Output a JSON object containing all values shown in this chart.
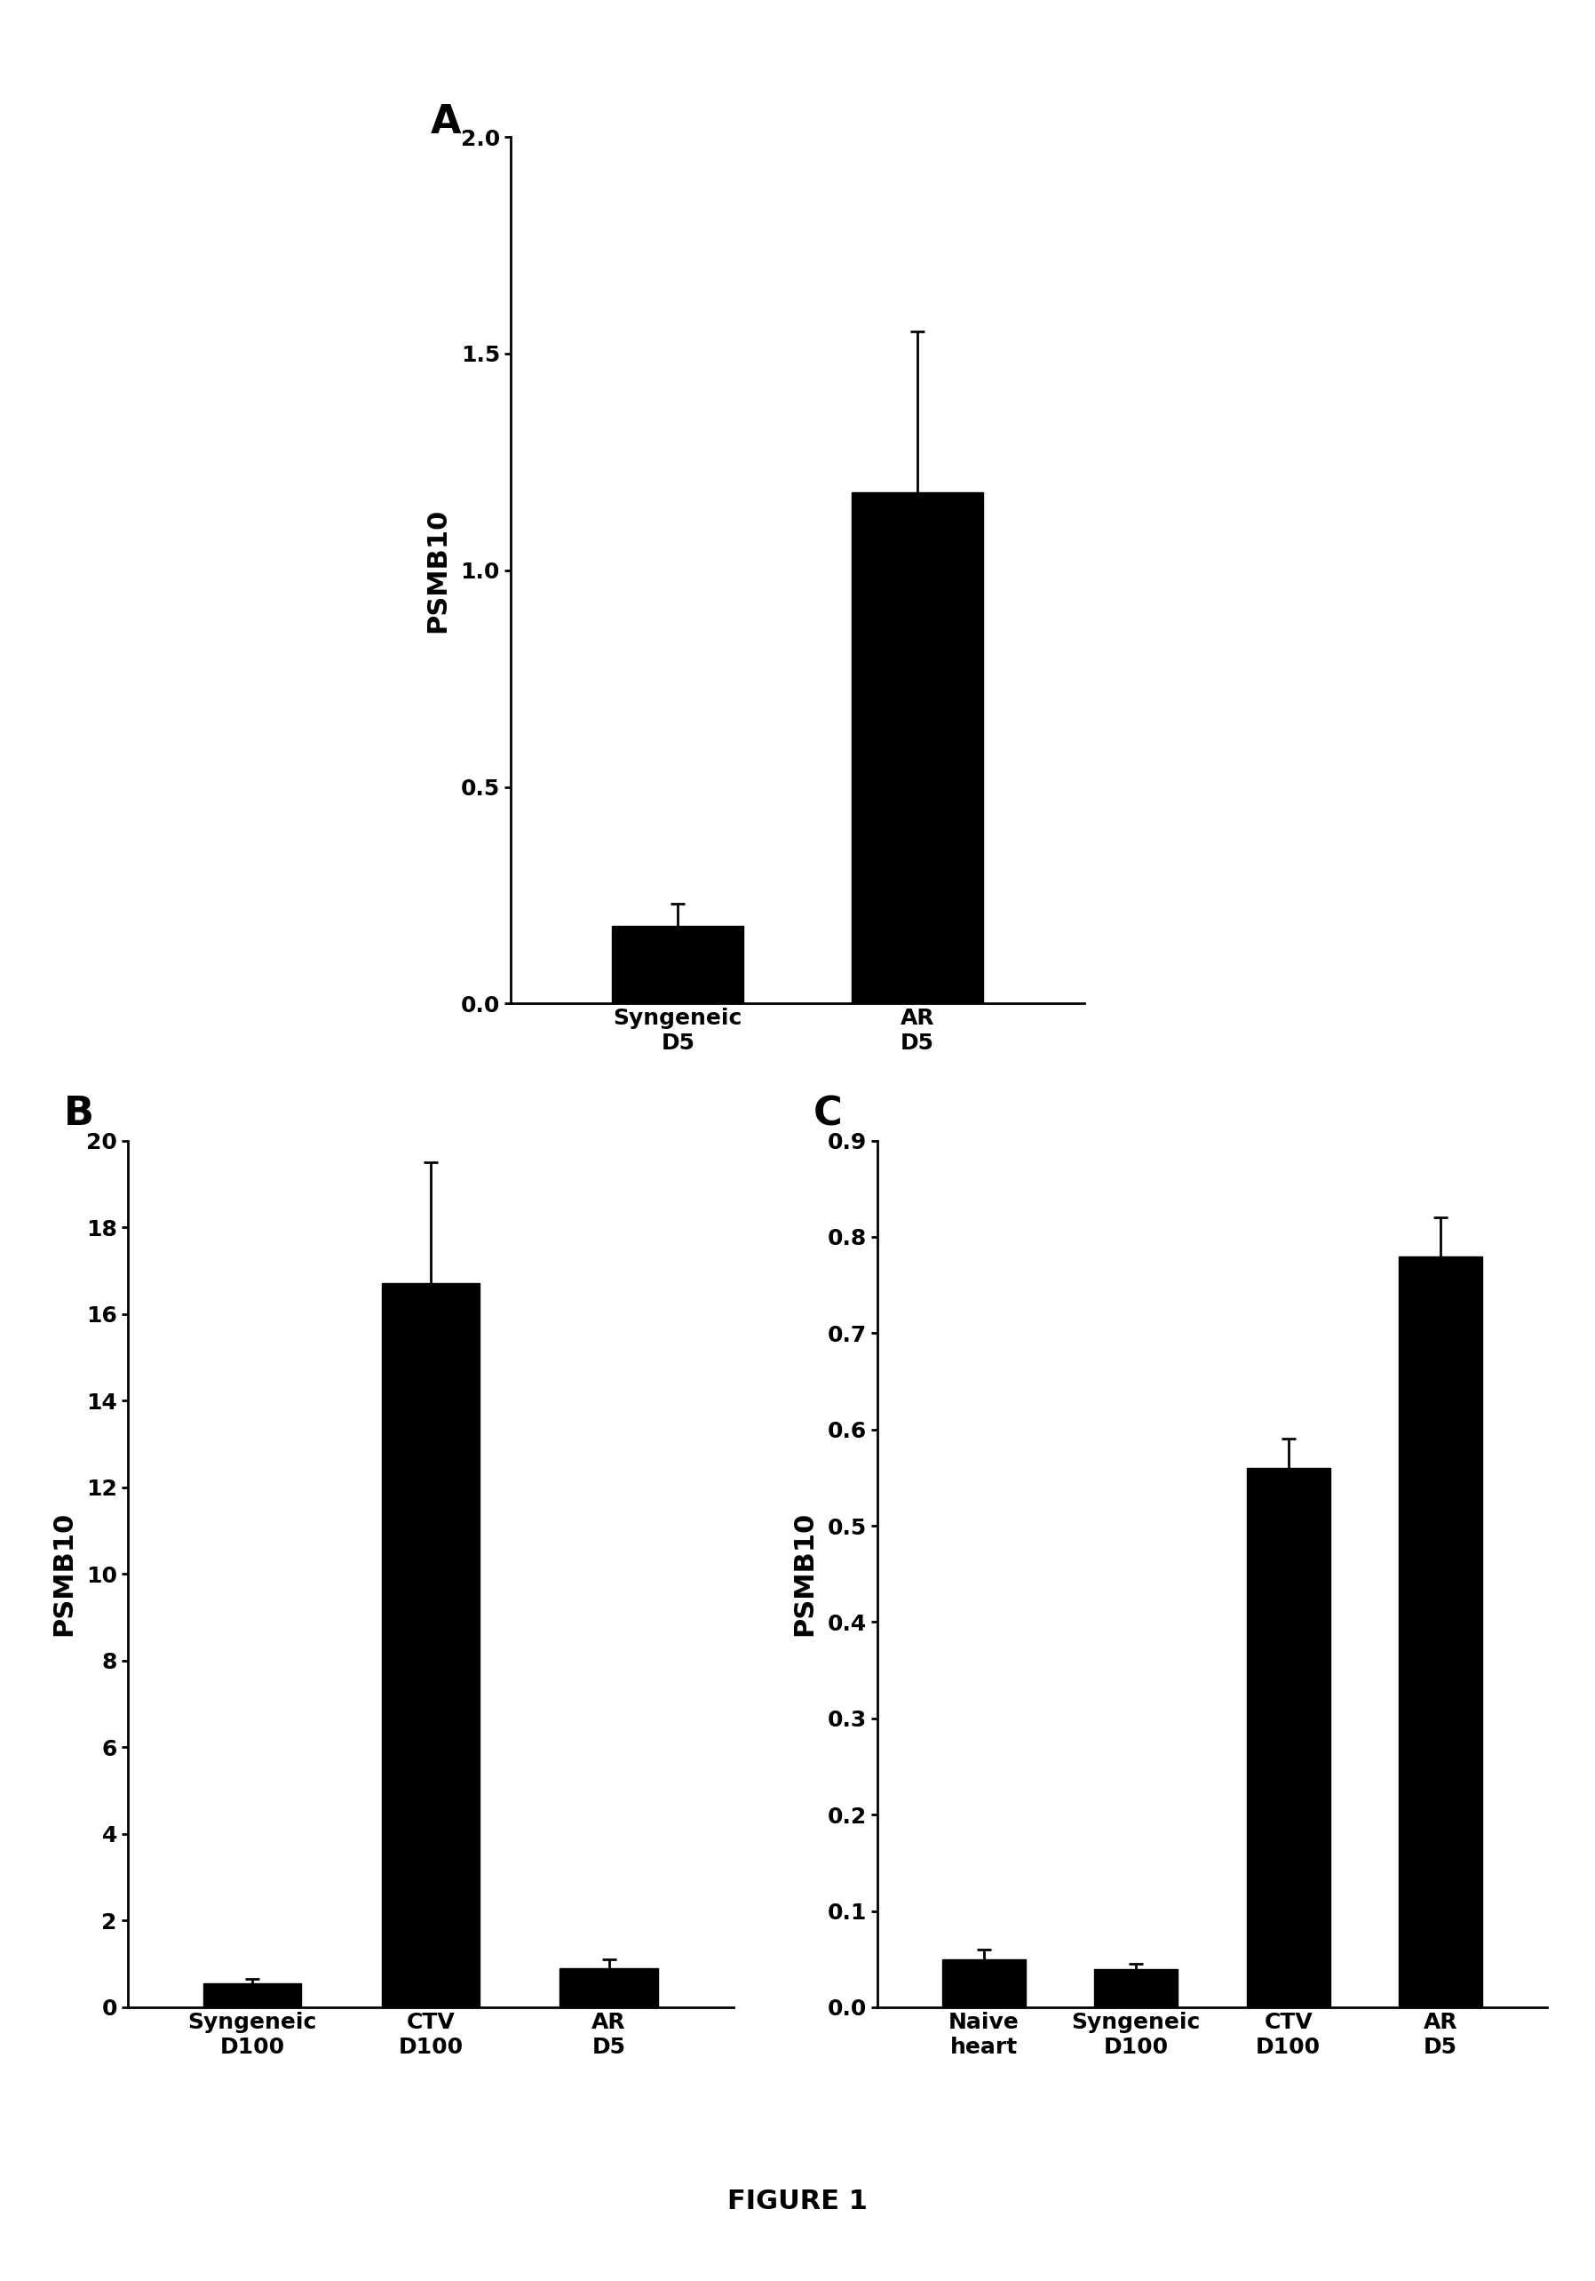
{
  "panel_A": {
    "categories": [
      "Syngeneic\nD5",
      "AR\nD5"
    ],
    "values": [
      0.18,
      1.18
    ],
    "errors": [
      0.05,
      0.37
    ],
    "ylabel": "PSMB10",
    "ylim": [
      0,
      2.0
    ],
    "yticks": [
      0.0,
      0.5,
      1.0,
      1.5,
      2.0
    ],
    "ytick_labels": [
      "0.0",
      "0.5",
      "1.0",
      "1.5",
      "2.0"
    ],
    "label": "A"
  },
  "panel_B": {
    "categories": [
      "Syngeneic\nD100",
      "CTV\nD100",
      "AR\nD5"
    ],
    "values": [
      0.55,
      16.7,
      0.9
    ],
    "errors": [
      0.1,
      2.8,
      0.2
    ],
    "ylabel": "PSMB10",
    "ylim": [
      0,
      20
    ],
    "yticks": [
      0,
      2,
      4,
      6,
      8,
      10,
      12,
      14,
      16,
      18,
      20
    ],
    "ytick_labels": [
      "0",
      "2",
      "4",
      "6",
      "8",
      "10",
      "12",
      "14",
      "16",
      "18",
      "20"
    ],
    "label": "B"
  },
  "panel_C": {
    "categories": [
      "Naive\nheart",
      "Syngeneic\nD100",
      "CTV\nD100",
      "AR\nD5"
    ],
    "values": [
      0.05,
      0.04,
      0.56,
      0.78
    ],
    "errors": [
      0.01,
      0.005,
      0.03,
      0.04
    ],
    "ylabel": "PSMB10",
    "ylim": [
      0,
      0.9
    ],
    "yticks": [
      0.0,
      0.1,
      0.2,
      0.3,
      0.4,
      0.5,
      0.6,
      0.7,
      0.8,
      0.9
    ],
    "ytick_labels": [
      "0.0",
      "0.1",
      "0.2",
      "0.3",
      "0.4",
      "0.5",
      "0.6",
      "0.7",
      "0.8",
      "0.9"
    ],
    "label": "C"
  },
  "figure_label": "FIGURE 1",
  "bar_color": "#000000",
  "bar_width": 0.55,
  "error_capsize": 6,
  "background_color": "#ffffff",
  "label_font_size": 32,
  "tick_font_size": 18,
  "ylabel_font_size": 22,
  "figure_label_font_size": 22
}
